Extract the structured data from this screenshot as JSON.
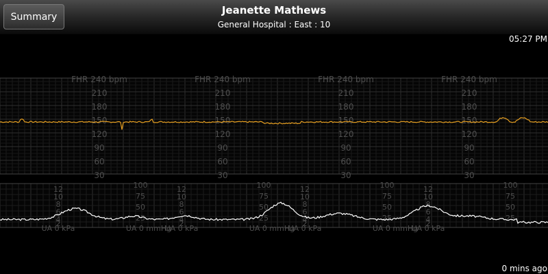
{
  "header": {
    "summary_label": "Summary",
    "patient_name": "Jeanette Mathews",
    "location": "General Hospital : East : 10",
    "clock": "05:27 PM"
  },
  "fhr": {
    "title": "FHR 240 bpm",
    "scale": [
      "210",
      "180",
      "150",
      "120",
      "90",
      "60",
      "30"
    ],
    "trace_color": "#e8a020"
  },
  "ua": {
    "kpa_scale": [
      "12",
      "10",
      "8",
      "6",
      "4",
      "2"
    ],
    "mmhg_scale": [
      "100",
      "75",
      "50",
      "25"
    ],
    "kpa_label": "UA 0 kPa",
    "mmhg_label": "UA 0 mmHg",
    "trace_color": "#ffffff"
  },
  "footer": {
    "elapsed": "0 mins ago"
  }
}
